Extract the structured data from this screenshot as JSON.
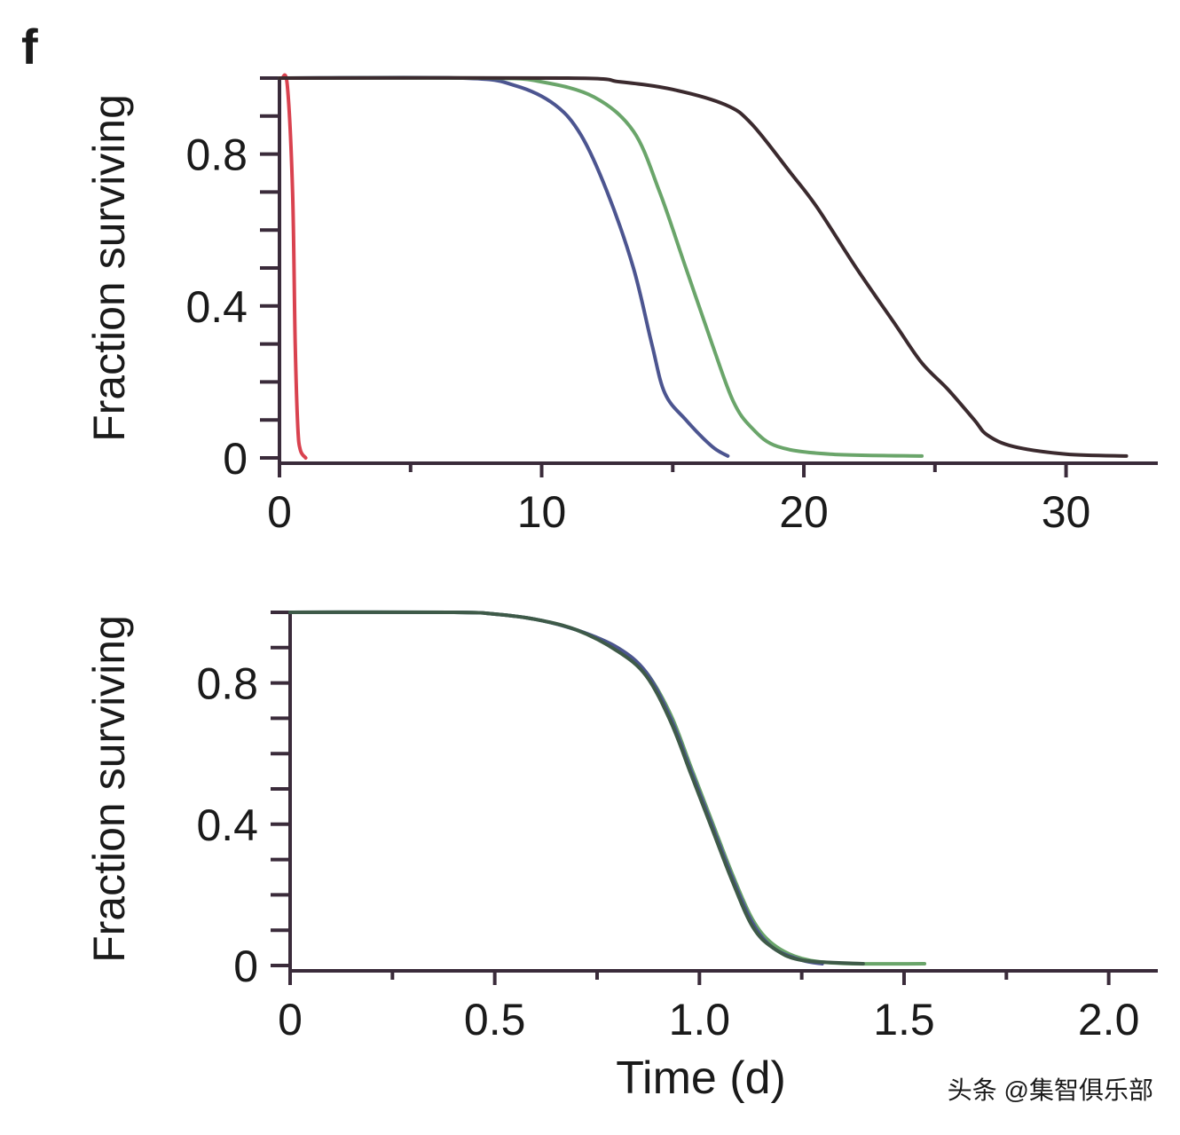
{
  "panel_label": "f",
  "watermark": "头条 @集智俱乐部",
  "chart_data": [
    {
      "type": "line",
      "title": "",
      "xlabel": "",
      "ylabel": "Fraction surviving",
      "xlim": [
        0,
        33.5
      ],
      "ylim": [
        0,
        1
      ],
      "xticks": [
        {
          "v": 0,
          "label": "0"
        },
        {
          "v": 10,
          "label": "10"
        },
        {
          "v": 20,
          "label": "20"
        },
        {
          "v": 30,
          "label": "30"
        }
      ],
      "xminor": [
        5,
        15,
        25
      ],
      "yticks": [
        {
          "v": 0,
          "label": "0"
        },
        {
          "v": 0.4,
          "label": "0.4"
        },
        {
          "v": 0.8,
          "label": "0.8"
        }
      ],
      "yminor_step": 0.1,
      "grid": false,
      "series": [
        {
          "name": "red",
          "color": "#d9424f",
          "x": [
            0.1,
            0.3,
            0.5,
            0.6,
            0.7,
            0.8,
            1.0
          ],
          "y": [
            1,
            0.98,
            0.7,
            0.3,
            0.08,
            0.02,
            0
          ]
        },
        {
          "name": "blue",
          "color": "#4c5590",
          "x": [
            0,
            7,
            9,
            10.5,
            11.5,
            12.5,
            13.5,
            14.2,
            14.7,
            15.5,
            16.5,
            17.1
          ],
          "y": [
            1,
            1,
            0.98,
            0.93,
            0.85,
            0.7,
            0.5,
            0.3,
            0.17,
            0.1,
            0.03,
            0.005
          ]
        },
        {
          "name": "green",
          "color": "#6aa56a",
          "x": [
            0,
            8,
            10,
            12,
            13.5,
            14.5,
            15.5,
            16.5,
            17.3,
            18,
            19,
            21,
            24.5
          ],
          "y": [
            1,
            1,
            0.99,
            0.95,
            0.86,
            0.7,
            0.5,
            0.3,
            0.15,
            0.08,
            0.03,
            0.01,
            0.005
          ]
        },
        {
          "name": "dark",
          "color": "#3b2a2e",
          "x": [
            0,
            11,
            13,
            15,
            17,
            18,
            19.5,
            20.5,
            22,
            23.5,
            24.5,
            25.5,
            26.5,
            27,
            28,
            30,
            32.3
          ],
          "y": [
            1,
            1,
            0.99,
            0.97,
            0.93,
            0.88,
            0.75,
            0.66,
            0.5,
            0.35,
            0.25,
            0.18,
            0.1,
            0.06,
            0.03,
            0.01,
            0.005
          ]
        }
      ]
    },
    {
      "type": "line",
      "title": "",
      "xlabel": "Time (d)",
      "ylabel": "Fraction surviving",
      "xlim": [
        0,
        2.12
      ],
      "ylim": [
        0,
        1
      ],
      "xticks": [
        {
          "v": 0,
          "label": "0"
        },
        {
          "v": 0.5,
          "label": "0.5"
        },
        {
          "v": 1.0,
          "label": "1.0"
        },
        {
          "v": 1.5,
          "label": "1.5"
        },
        {
          "v": 2.0,
          "label": "2.0"
        }
      ],
      "xminor": [
        0.25,
        0.75,
        1.25,
        1.75
      ],
      "yticks": [
        {
          "v": 0,
          "label": "0"
        },
        {
          "v": 0.4,
          "label": "0.4"
        },
        {
          "v": 0.8,
          "label": "0.8"
        }
      ],
      "yminor_step": 0.1,
      "grid": false,
      "series": [
        {
          "name": "green",
          "color": "#6aa56a",
          "x": [
            0,
            0.4,
            0.5,
            0.6,
            0.7,
            0.8,
            0.87,
            0.93,
            0.98,
            1.03,
            1.08,
            1.13,
            1.18,
            1.25,
            1.35,
            1.55
          ],
          "y": [
            1,
            1,
            0.995,
            0.98,
            0.95,
            0.9,
            0.83,
            0.71,
            0.56,
            0.41,
            0.26,
            0.13,
            0.06,
            0.02,
            0.006,
            0.005
          ]
        },
        {
          "name": "blue",
          "color": "#4c5590",
          "x": [
            0,
            0.4,
            0.5,
            0.6,
            0.7,
            0.8,
            0.87,
            0.93,
            0.98,
            1.03,
            1.08,
            1.13,
            1.18,
            1.25,
            1.3
          ],
          "y": [
            1,
            1,
            0.995,
            0.98,
            0.95,
            0.9,
            0.83,
            0.7,
            0.55,
            0.4,
            0.25,
            0.12,
            0.05,
            0.015,
            0.005
          ]
        },
        {
          "name": "dark-green",
          "color": "#3e5a48",
          "x": [
            0,
            0.4,
            0.5,
            0.6,
            0.7,
            0.8,
            0.87,
            0.93,
            0.98,
            1.03,
            1.08,
            1.13,
            1.18,
            1.25,
            1.4
          ],
          "y": [
            1,
            1,
            0.995,
            0.98,
            0.95,
            0.89,
            0.82,
            0.69,
            0.54,
            0.39,
            0.24,
            0.11,
            0.05,
            0.015,
            0.005
          ]
        }
      ]
    }
  ]
}
